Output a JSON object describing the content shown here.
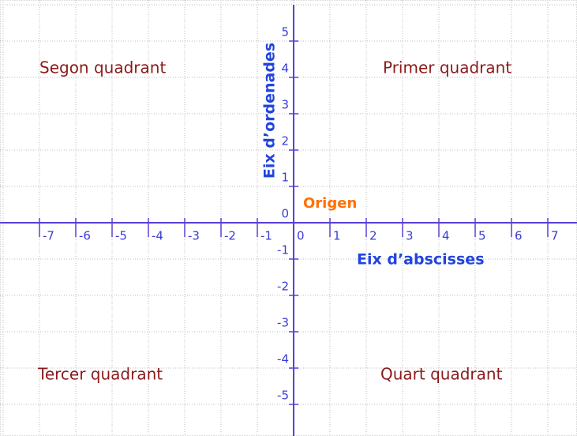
{
  "plane": {
    "quadrants": [
      "Primer quadrant",
      "Segon quadrant",
      "Tercer quadrant",
      "Quart quadrant"
    ],
    "origin_label": "Origen",
    "x_axis_label": "Eix d’abscisses",
    "y_axis_label": "Eix d’ordenades",
    "xticks": [
      -7,
      -6,
      -5,
      -4,
      -3,
      -2,
      -1,
      0,
      1,
      2,
      3,
      4,
      5,
      6,
      7
    ],
    "yticks": [
      -5,
      -4,
      -3,
      -2,
      -1,
      0,
      1,
      2,
      3,
      4,
      5
    ]
  }
}
